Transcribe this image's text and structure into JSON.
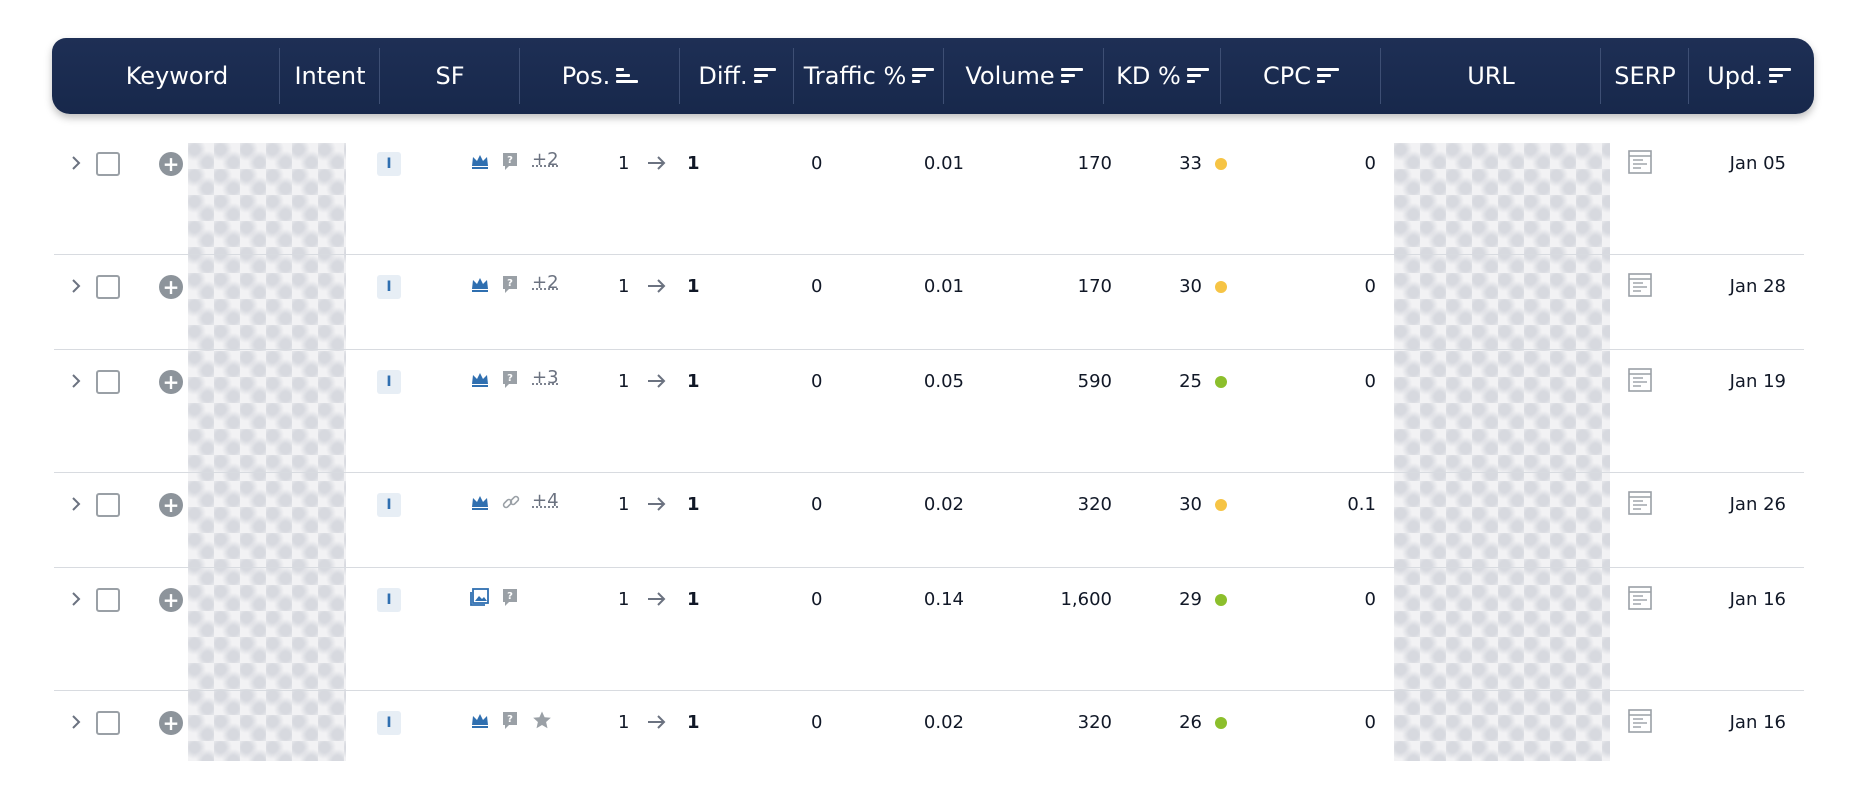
{
  "header": {
    "columns": [
      {
        "label": "Keyword",
        "sortable": false
      },
      {
        "label": "Intent",
        "sortable": false
      },
      {
        "label": "SF",
        "sortable": false
      },
      {
        "label": "Pos.",
        "sortable": true
      },
      {
        "label": "Diff.",
        "sortable": true
      },
      {
        "label": "Traffic %",
        "sortable": true
      },
      {
        "label": "Volume",
        "sortable": true
      },
      {
        "label": "KD %",
        "sortable": true
      },
      {
        "label": "CPC",
        "sortable": true
      },
      {
        "label": "URL",
        "sortable": false
      },
      {
        "label": "SERP",
        "sortable": false
      },
      {
        "label": "Upd.",
        "sortable": true
      }
    ]
  },
  "colors": {
    "header_bg": "#1b2d52",
    "kd_yellow": "#f6c445",
    "kd_green": "#8cbf2c",
    "icon_blue": "#2f6fb0"
  },
  "rows": [
    {
      "intent": "I",
      "sf_icons": [
        "crown-icon",
        "question-icon"
      ],
      "sf_more": "+2",
      "pos_from": "1",
      "pos_to": "1",
      "diff": "0",
      "traffic": "0.01",
      "volume": "170",
      "kd": "33",
      "kd_color": "yellow",
      "cpc": "0",
      "updated": "Jan 05"
    },
    {
      "intent": "I",
      "sf_icons": [
        "crown-icon",
        "question-icon"
      ],
      "sf_more": "+2",
      "pos_from": "1",
      "pos_to": "1",
      "diff": "0",
      "traffic": "0.01",
      "volume": "170",
      "kd": "30",
      "kd_color": "yellow",
      "cpc": "0",
      "updated": "Jan 28"
    },
    {
      "intent": "I",
      "sf_icons": [
        "crown-icon",
        "question-icon"
      ],
      "sf_more": "+3",
      "pos_from": "1",
      "pos_to": "1",
      "diff": "0",
      "traffic": "0.05",
      "volume": "590",
      "kd": "25",
      "kd_color": "green",
      "cpc": "0",
      "updated": "Jan 19"
    },
    {
      "intent": "I",
      "sf_icons": [
        "crown-icon",
        "link-icon"
      ],
      "sf_more": "+4",
      "pos_from": "1",
      "pos_to": "1",
      "diff": "0",
      "traffic": "0.02",
      "volume": "320",
      "kd": "30",
      "kd_color": "yellow",
      "cpc": "0.1",
      "updated": "Jan 26"
    },
    {
      "intent": "I",
      "sf_icons": [
        "image-icon",
        "question-icon"
      ],
      "sf_more": "",
      "pos_from": "1",
      "pos_to": "1",
      "diff": "0",
      "traffic": "0.14",
      "volume": "1,600",
      "kd": "29",
      "kd_color": "green",
      "cpc": "0",
      "updated": "Jan 16"
    },
    {
      "intent": "I",
      "sf_icons": [
        "crown-icon",
        "question-icon",
        "star-icon"
      ],
      "sf_more": "",
      "pos_from": "1",
      "pos_to": "1",
      "diff": "0",
      "traffic": "0.02",
      "volume": "320",
      "kd": "26",
      "kd_color": "green",
      "cpc": "0",
      "updated": "Jan 16"
    }
  ]
}
